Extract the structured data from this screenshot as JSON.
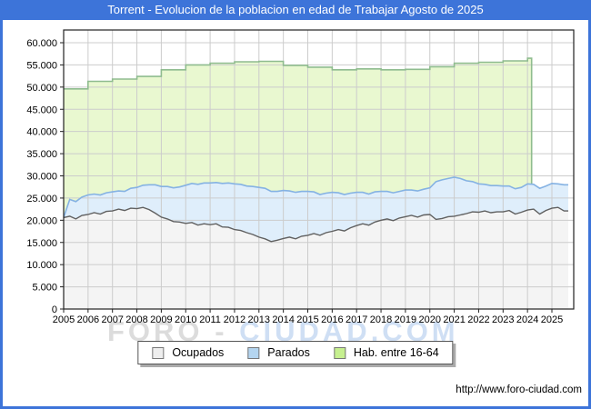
{
  "page": {
    "title": "Torrent - Evolucion de la poblacion en edad de Trabajar Agosto de 2025",
    "footer_url": "http://www.foro-ciudad.com",
    "watermark": {
      "left": "FORO",
      "sep": "-",
      "right": "CIUDAD.COM"
    }
  },
  "colors": {
    "titlebar_bg": "#3d74d9",
    "outer_border": "#3d74d9",
    "plot_frame": "#222222",
    "gridline": "#cccccc",
    "ocupados_fill": "#f4f4f4",
    "ocupados_line": "#606060",
    "parados_fill": "#dfeefb",
    "parados_line": "#85b2e3",
    "hab_fill": "#e9f8d0",
    "hab_line": "#8fbc8f",
    "watermark_gray": "#dcdcdc",
    "watermark_blue": "#cfdff4"
  },
  "chart_data": {
    "type": "area",
    "title": "Torrent - Evolucion de la poblacion en edad de Trabajar Agosto de 2025",
    "grid": true,
    "legend_position": "bottom-center",
    "x_axis": {
      "ticks": [
        2005,
        2006,
        2007,
        2008,
        2009,
        2010,
        2011,
        2012,
        2013,
        2014,
        2015,
        2016,
        2017,
        2018,
        2019,
        2020,
        2021,
        2022,
        2023,
        2024,
        2025
      ],
      "min": 2005,
      "max": 2025.9
    },
    "y_axis": {
      "tick_values": [
        0,
        5000,
        10000,
        15000,
        20000,
        25000,
        30000,
        35000,
        40000,
        45000,
        50000,
        55000,
        60000
      ],
      "tick_labels": [
        "0",
        "5.000",
        "10.000",
        "15.000",
        "20.000",
        "25.000",
        "30.000",
        "35.000",
        "40.000",
        "45.000",
        "50.000",
        "55.000",
        "60.000"
      ],
      "min": 0,
      "max": 62800
    },
    "series": [
      {
        "name": "Ocupados",
        "kind": "area",
        "stack": "base",
        "legend_fill": "#eeeeee",
        "start_year": 2005.0,
        "step_years": 0.25,
        "end_year": 2025.67,
        "values": [
          20600,
          20900,
          20300,
          21100,
          21300,
          21700,
          21400,
          22000,
          22100,
          22500,
          22200,
          22700,
          22600,
          22900,
          22400,
          21600,
          20700,
          20300,
          19700,
          19600,
          19300,
          19500,
          18900,
          19200,
          19000,
          19200,
          18500,
          18400,
          17900,
          17700,
          17200,
          16800,
          16200,
          15800,
          15200,
          15500,
          15900,
          16200,
          15800,
          16400,
          16600,
          17000,
          16600,
          17200,
          17500,
          17900,
          17600,
          18300,
          18800,
          19200,
          18900,
          19600,
          20000,
          20300,
          19900,
          20500,
          20800,
          21100,
          20700,
          21200,
          21300,
          20200,
          20400,
          20800,
          20900,
          21200,
          21500,
          21900,
          21800,
          22100,
          21700,
          21900,
          21900,
          22200,
          21400,
          21800,
          22300,
          22500,
          21400,
          22200,
          22700,
          22900,
          22100
        ]
      },
      {
        "name": "Parados",
        "kind": "area",
        "stack": "on-base",
        "legend_fill": "#b4d5f0",
        "start_year": 2005.0,
        "step_years": 0.25,
        "end_year": 2025.67,
        "values": [
          0,
          3800,
          3900,
          4100,
          4400,
          4200,
          4300,
          4200,
          4300,
          4100,
          4300,
          4500,
          4800,
          5000,
          5600,
          6400,
          6900,
          7300,
          7600,
          7900,
          8600,
          8800,
          9200,
          9200,
          9400,
          9300,
          9800,
          10000,
          10300,
          10400,
          10500,
          10800,
          11200,
          11400,
          11300,
          11000,
          10800,
          10400,
          10500,
          10100,
          9900,
          9400,
          9200,
          8900,
          8800,
          8300,
          8200,
          7800,
          7500,
          7100,
          7000,
          6800,
          6500,
          6200,
          6300,
          6000,
          6000,
          5700,
          5900,
          5800,
          6000,
          8500,
          8700,
          8600,
          8800,
          8200,
          7400,
          6800,
          6400,
          6000,
          6100,
          5900,
          5800,
          5500,
          5700,
          5600,
          5900,
          5600,
          5800,
          5500,
          5600,
          5300,
          5900
        ]
      },
      {
        "name": "Hab. entre 16-64",
        "kind": "step-area",
        "stack": "independent",
        "legend_fill": "#c6f08f",
        "years": [
          2005,
          2006,
          2007,
          2008,
          2009,
          2010,
          2011,
          2012,
          2013,
          2014,
          2015,
          2016,
          2017,
          2018,
          2019,
          2020,
          2021,
          2022,
          2023,
          2024
        ],
        "end_year": 2024.17,
        "values": [
          49600,
          51300,
          51800,
          52400,
          53900,
          55000,
          55400,
          55700,
          55800,
          54900,
          54500,
          53900,
          54100,
          53900,
          54000,
          54600,
          55400,
          55600,
          55900,
          56500
        ]
      }
    ]
  }
}
